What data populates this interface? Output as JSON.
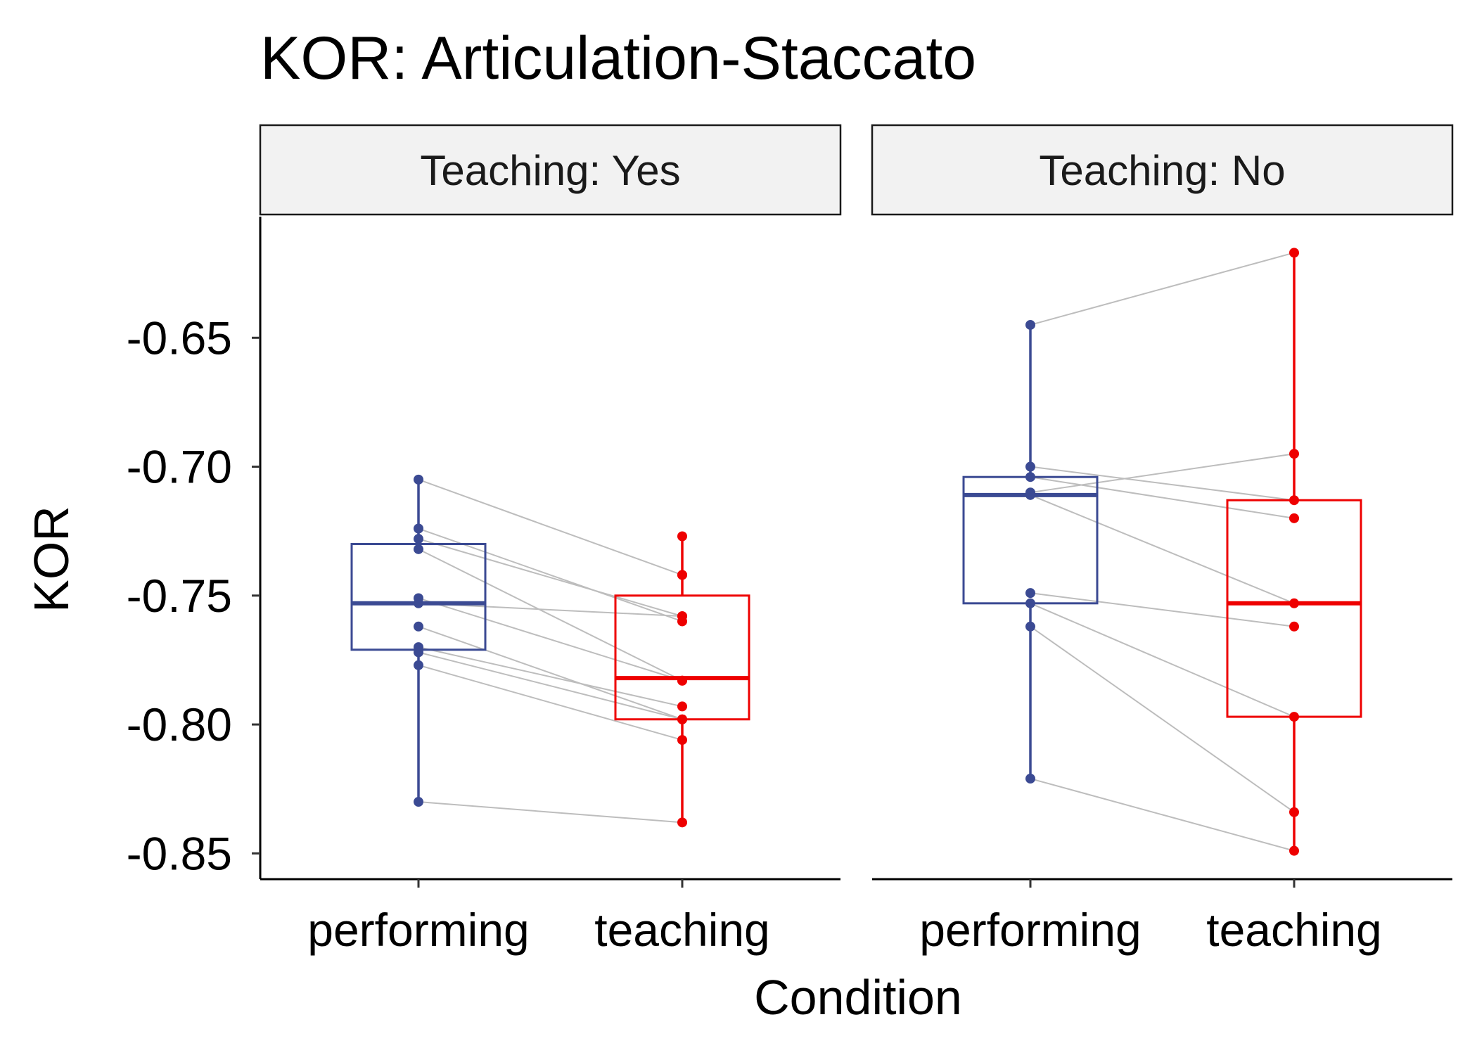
{
  "chart_data": {
    "type": "box",
    "title": "KOR: Articulation-Staccato",
    "xlabel": "Condition",
    "ylabel": "KOR",
    "ylim": [
      -0.86,
      -0.603
    ],
    "yticks": [
      "-0.65",
      "-0.70",
      "-0.75",
      "-0.80",
      "-0.85"
    ],
    "categories": [
      "performing",
      "teaching"
    ],
    "series_colors": {
      "performing": "#3b4a93",
      "teaching": "#ee0000"
    },
    "paired_line_color": "#bdbdbd",
    "grid": false,
    "legend": "none",
    "panels": [
      {
        "label": "Teaching: Yes",
        "boxes": {
          "performing": {
            "min": -0.83,
            "q1": -0.771,
            "median": -0.753,
            "q3": -0.73,
            "max": -0.705
          },
          "teaching": {
            "min": -0.838,
            "q1": -0.798,
            "median": -0.782,
            "q3": -0.75,
            "max": -0.727
          }
        },
        "pairs": [
          [
            -0.705,
            -0.742
          ],
          [
            -0.724,
            -0.76
          ],
          [
            -0.728,
            -0.758
          ],
          [
            -0.732,
            -0.783
          ],
          [
            -0.751,
            -0.783
          ],
          [
            -0.753,
            -0.758
          ],
          [
            -0.762,
            -0.798
          ],
          [
            -0.77,
            -0.793
          ],
          [
            -0.772,
            -0.798
          ],
          [
            -0.777,
            -0.806
          ],
          [
            -0.83,
            -0.838
          ]
        ],
        "extra_points": {
          "teaching": [
            -0.727,
            -0.742
          ]
        }
      },
      {
        "label": "Teaching: No",
        "boxes": {
          "performing": {
            "min": -0.821,
            "q1": -0.753,
            "median": -0.711,
            "q3": -0.704,
            "max": -0.645
          },
          "teaching": {
            "min": -0.849,
            "q1": -0.797,
            "median": -0.753,
            "q3": -0.713,
            "max": -0.617
          }
        },
        "pairs": [
          [
            -0.645,
            -0.617
          ],
          [
            -0.7,
            -0.713
          ],
          [
            -0.704,
            -0.72
          ],
          [
            -0.71,
            -0.695
          ],
          [
            -0.711,
            -0.753
          ],
          [
            -0.749,
            -0.762
          ],
          [
            -0.753,
            -0.797
          ],
          [
            -0.762,
            -0.834
          ],
          [
            -0.821,
            -0.849
          ]
        ],
        "extra_points": {}
      }
    ]
  }
}
